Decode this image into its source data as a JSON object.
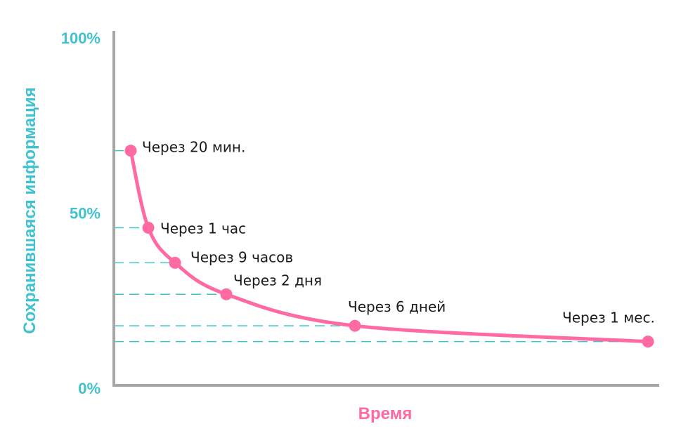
{
  "chart_data": {
    "type": "line",
    "title": "",
    "xlabel": "Время",
    "ylabel": "Сохранившаяся информация",
    "y_ticks": [
      "100%",
      "50%",
      "0%"
    ],
    "ylim": [
      0,
      100
    ],
    "grid": false,
    "series": [
      {
        "points": [
          {
            "label": "Через 20 мин.",
            "y": 67
          },
          {
            "label": "Через 1 час",
            "y": 45
          },
          {
            "label": "Через 9 часов",
            "y": 35
          },
          {
            "label": "Через 2 дня",
            "y": 26
          },
          {
            "label": "Через 6 дней",
            "y": 17
          },
          {
            "label": "Через 1 мес.",
            "y": 12.5
          }
        ]
      }
    ],
    "colors": {
      "curve": "#ff6aa3",
      "axis": "#a6a6a6",
      "guides": "#3fc1cf",
      "tick_text": "#3fc1cf",
      "ylabel_text": "#3fc1cf",
      "xlabel_text": "#ff6aa3"
    }
  }
}
